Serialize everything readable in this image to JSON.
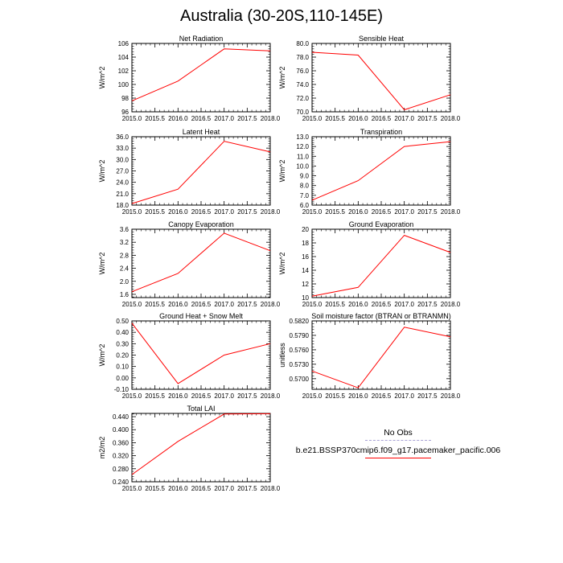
{
  "page_title": "Australia (30-20S,110-145E)",
  "legend": {
    "items": [
      {
        "label": "No Obs",
        "color": "#a9a3d6",
        "style": "dashed"
      },
      {
        "label": "b.e21.BSSP370cmip6.f09_g17.pacemaker_pacific.006",
        "color": "#ff0000",
        "style": "solid"
      }
    ]
  },
  "chart_data": [
    {
      "type": "line",
      "title": "Net Radiation",
      "ylabel": "W/m^2",
      "x": [
        2015,
        2016,
        2017,
        2018
      ],
      "xlim": [
        2015,
        2018
      ],
      "xticks": [
        "2015.0",
        "2015.5",
        "2016.0",
        "2016.5",
        "2017.0",
        "2017.5",
        "2018.0"
      ],
      "ylim": [
        96,
        106
      ],
      "yticks": [
        "96",
        "98",
        "100",
        "102",
        "104",
        "106"
      ],
      "series": [
        {
          "values": [
            97.6,
            100.5,
            105.2,
            104.9
          ],
          "color": "#ff0000"
        }
      ]
    },
    {
      "type": "line",
      "title": "Sensible Heat",
      "ylabel": "W/m^2",
      "x": [
        2015,
        2016,
        2017,
        2018
      ],
      "xlim": [
        2015,
        2018
      ],
      "xticks": [
        "2015.0",
        "2015.5",
        "2016.0",
        "2016.5",
        "2017.0",
        "2017.5",
        "2018.0"
      ],
      "ylim": [
        70,
        80
      ],
      "yticks": [
        "70.0",
        "72.0",
        "74.0",
        "76.0",
        "78.0",
        "80.0"
      ],
      "series": [
        {
          "values": [
            78.7,
            78.3,
            70.3,
            72.5
          ],
          "color": "#ff0000"
        }
      ]
    },
    {
      "type": "line",
      "title": "Latent Heat",
      "ylabel": "W/m^2",
      "x": [
        2015,
        2016,
        2017,
        2018
      ],
      "xlim": [
        2015,
        2018
      ],
      "xticks": [
        "2015.0",
        "2015.5",
        "2016.0",
        "2016.5",
        "2017.0",
        "2017.5",
        "2018.0"
      ],
      "ylim": [
        18,
        36
      ],
      "yticks": [
        "18.0",
        "21.0",
        "24.0",
        "27.0",
        "30.0",
        "33.0",
        "36.0"
      ],
      "series": [
        {
          "values": [
            18.4,
            22.2,
            34.8,
            32.0
          ],
          "color": "#ff0000"
        }
      ]
    },
    {
      "type": "line",
      "title": "Transpiration",
      "ylabel": "W/m^2",
      "x": [
        2015,
        2016,
        2017,
        2018
      ],
      "xlim": [
        2015,
        2018
      ],
      "xticks": [
        "2015.0",
        "2015.5",
        "2016.0",
        "2016.5",
        "2017.0",
        "2017.5",
        "2018.0"
      ],
      "ylim": [
        6,
        13
      ],
      "yticks": [
        "6.0",
        "7.0",
        "8.0",
        "9.0",
        "10.0",
        "11.0",
        "12.0",
        "13.0"
      ],
      "series": [
        {
          "values": [
            6.5,
            8.5,
            12.0,
            12.5
          ],
          "color": "#ff0000"
        }
      ]
    },
    {
      "type": "line",
      "title": "Canopy Evaporation",
      "ylabel": "W/m^2",
      "x": [
        2015,
        2016,
        2017,
        2018
      ],
      "xlim": [
        2015,
        2018
      ],
      "xticks": [
        "2015.0",
        "2015.5",
        "2016.0",
        "2016.5",
        "2017.0",
        "2017.5",
        "2018.0"
      ],
      "ylim": [
        1.5,
        3.6
      ],
      "yticks": [
        "1.6",
        "2.0",
        "2.4",
        "2.8",
        "3.2",
        "3.6"
      ],
      "series": [
        {
          "values": [
            1.68,
            2.24,
            3.48,
            2.94
          ],
          "color": "#ff0000"
        }
      ]
    },
    {
      "type": "line",
      "title": "Ground Evaporation",
      "ylabel": "W/m^2",
      "x": [
        2015,
        2016,
        2017,
        2018
      ],
      "xlim": [
        2015,
        2018
      ],
      "xticks": [
        "2015.0",
        "2015.5",
        "2016.0",
        "2016.5",
        "2017.0",
        "2017.5",
        "2018.0"
      ],
      "ylim": [
        10,
        20
      ],
      "yticks": [
        "10",
        "12",
        "14",
        "16",
        "18",
        "20"
      ],
      "series": [
        {
          "values": [
            10.2,
            11.5,
            19.1,
            16.6
          ],
          "color": "#ff0000"
        }
      ]
    },
    {
      "type": "line",
      "title": "Ground Heat + Snow Melt",
      "ylabel": "W/m^2",
      "x": [
        2015,
        2016,
        2017,
        2018
      ],
      "xlim": [
        2015,
        2018
      ],
      "xticks": [
        "2015.0",
        "2015.5",
        "2016.0",
        "2016.5",
        "2017.0",
        "2017.5",
        "2018.0"
      ],
      "ylim": [
        -0.1,
        0.5
      ],
      "yticks": [
        "-0.10",
        "0.00",
        "0.10",
        "0.20",
        "0.30",
        "0.40",
        "0.50"
      ],
      "series": [
        {
          "values": [
            0.48,
            -0.05,
            0.2,
            0.3
          ],
          "color": "#ff0000"
        }
      ]
    },
    {
      "type": "line",
      "title": "Soil moisture factor (BTRAN or BTRANMN)",
      "ylabel": "unitless",
      "x": [
        2015,
        2016,
        2017,
        2018
      ],
      "xlim": [
        2015,
        2018
      ],
      "xticks": [
        "2015.0",
        "2015.5",
        "2016.0",
        "2016.5",
        "2017.0",
        "2017.5",
        "2018.0"
      ],
      "ylim": [
        0.5678,
        0.582
      ],
      "yticks": [
        "0.5700",
        "0.5730",
        "0.5760",
        "0.5790",
        "0.5820"
      ],
      "series": [
        {
          "values": [
            0.5716,
            0.5681,
            0.5807,
            0.5787
          ],
          "color": "#ff0000"
        }
      ]
    },
    {
      "type": "line",
      "title": "Total LAI",
      "ylabel": "m2/m2",
      "x": [
        2015,
        2016,
        2017,
        2018
      ],
      "xlim": [
        2015,
        2018
      ],
      "xticks": [
        "2015.0",
        "2015.5",
        "2016.0",
        "2016.5",
        "2017.0",
        "2017.5",
        "2018.0"
      ],
      "ylim": [
        0.24,
        0.45
      ],
      "yticks": [
        "0.240",
        "0.280",
        "0.320",
        "0.360",
        "0.400",
        "0.440"
      ],
      "series": [
        {
          "values": [
            0.262,
            0.364,
            0.448,
            0.449
          ],
          "color": "#ff0000"
        }
      ]
    }
  ]
}
